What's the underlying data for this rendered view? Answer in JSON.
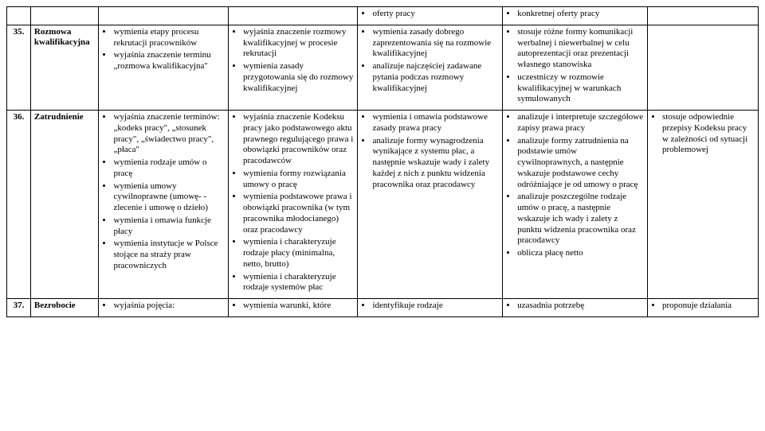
{
  "rows": [
    {
      "num": "",
      "title": "",
      "c1": [],
      "c2": [],
      "c3": [
        "oferty pracy"
      ],
      "c4": [
        "konkretnej oferty pracy"
      ],
      "c5": []
    },
    {
      "num": "35.",
      "title": "Rozmowa kwalifikacyjna",
      "c1": [
        "wymienia etapy procesu rekrutacji pracowników",
        "wyjaśnia znaczenie terminu „rozmowa kwalifikacyjna\""
      ],
      "c2": [
        "wyjaśnia znaczenie rozmowy kwalifikacyjnej w procesie rekrutacji",
        "wymienia zasady przygotowania się do rozmowy kwalifikacyjnej"
      ],
      "c3": [
        "wymienia zasady dobrego zaprezentowania się na rozmowie kwalifikacyjnej",
        "analizuje najczęściej zadawane pytania podczas rozmowy kwalifikacyjnej"
      ],
      "c4": [
        "stosuje różne formy komunikacji werbalnej i niewerbalnej w celu autoprezentacji oraz prezentacji własnego stanowiska",
        "uczestniczy w rozmowie kwalifikacyjnej w warunkach symulowanych"
      ],
      "c5": []
    },
    {
      "num": "36.",
      "title": "Zatrudnienie",
      "c1": [
        "wyjaśnia znaczenie terminów: „kodeks pracy\", „stosunek pracy\", „świadectwo pracy\", „płaca\"",
        "wymienia rodzaje umów o pracę",
        "wymienia umowy cywilnoprawne (umowę- -zlecenie i umowę o dzieło)",
        "wymienia i omawia funkcje płacy",
        "wymienia instytucje w Polsce stojące na straży praw pracowniczych"
      ],
      "c2": [
        "wyjaśnia znaczenie Kodeksu pracy jako podstawowego aktu prawnego regulującego prawa i obowiązki pracowników oraz pracodawców",
        "wymienia formy rozwiązania umowy o pracę",
        "wymienia podstawowe prawa i obowiązki pracownika (w tym pracownika młodocianego) oraz pracodawcy",
        "wymienia i charakteryzuje rodzaje płacy (minimalna, netto, brutto)",
        "wymienia i charakteryzuje rodzaje systemów płac"
      ],
      "c3": [
        "wymienia i omawia podstawowe zasady prawa pracy",
        "analizuje formy wynagrodzenia wynikające z systemu płac, a następnie wskazuje wady i zalety każdej z nich z punktu widzenia pracownika oraz pracodawcy"
      ],
      "c4": [
        "analizuje i interpretuje szczegółowe zapisy prawa pracy",
        "analizuje formy zatrudnienia na podstawie umów cywilnoprawnych, a następnie wskazuje podstawowe cechy odróżniające je od umowy o pracę",
        "analizuje poszczególne rodzaje umów o pracę, a następnie wskazuje ich wady i zalety z punktu widzenia pracownika oraz pracodawcy",
        "oblicza płacę netto"
      ],
      "c5": [
        "stosuje odpowiednie przepisy Kodeksu pracy w zależności od sytuacji problemowej"
      ]
    },
    {
      "num": "37.",
      "title": "Bezrobocie",
      "c1": [
        "wyjaśnia pojęcia:"
      ],
      "c2": [
        "wymienia warunki, które"
      ],
      "c3": [
        "identyfikuje rodzaje"
      ],
      "c4": [
        "uzasadnia potrzebę"
      ],
      "c5": [
        "proponuje działania"
      ]
    }
  ]
}
